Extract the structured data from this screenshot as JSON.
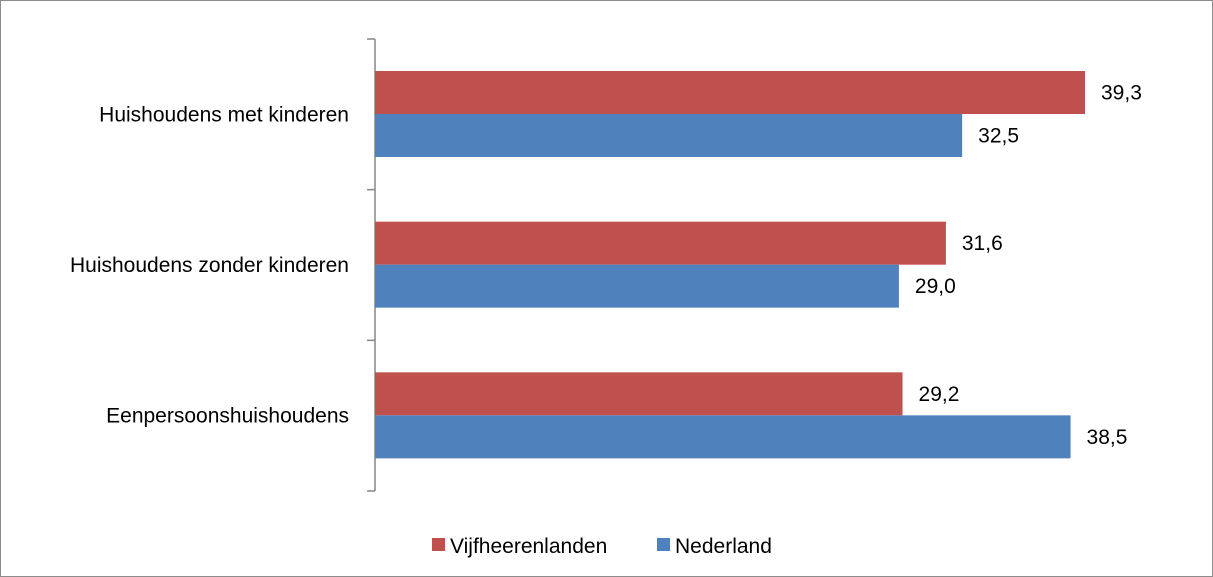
{
  "chart_data": {
    "type": "bar",
    "orientation": "horizontal",
    "title": "",
    "xlabel": "",
    "ylabel": "",
    "categories": [
      "Huishoudens met kinderen",
      "Huishoudens zonder kinderen",
      "Eenpersoonshuishoudens"
    ],
    "series": [
      {
        "name": "Vijfheerenlanden",
        "color": "#c0504d",
        "values": [
          39.3,
          31.6,
          29.2
        ],
        "labels": [
          "39,3",
          "31,6",
          "29,2"
        ]
      },
      {
        "name": "Nederland",
        "color": "#4f81bd",
        "values": [
          32.5,
          29.0,
          38.5
        ],
        "labels": [
          "32,5",
          "29,0",
          "38,5"
        ]
      }
    ],
    "xlim": [
      0,
      40
    ],
    "grid": false,
    "legend_position": "bottom"
  }
}
